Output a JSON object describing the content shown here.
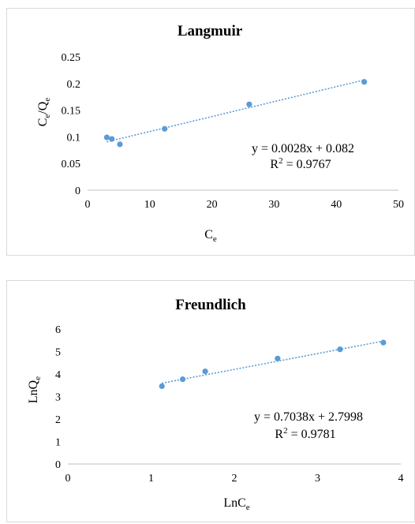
{
  "chart_data": [
    {
      "type": "scatter",
      "title": "Langmuir",
      "xlabel": {
        "main": "C",
        "sub": "e"
      },
      "ylabel": {
        "main": "C",
        "sub1": "e",
        "mid": "/Q",
        "sub2": "e"
      },
      "xlim": [
        0,
        50
      ],
      "ylim": [
        0,
        0.25
      ],
      "xticks": [
        "0",
        "10",
        "20",
        "30",
        "40",
        "50"
      ],
      "yticks": [
        "0",
        "0.05",
        "0.1",
        "0.15",
        "0.2",
        "0.25"
      ],
      "grid": false,
      "points": [
        {
          "x": 3.1,
          "y": 0.099
        },
        {
          "x": 3.9,
          "y": 0.096
        },
        {
          "x": 5.2,
          "y": 0.086
        },
        {
          "x": 12.4,
          "y": 0.115
        },
        {
          "x": 26.0,
          "y": 0.161
        },
        {
          "x": 44.5,
          "y": 0.203
        }
      ],
      "trendline": {
        "slope": 0.0028,
        "intercept": 0.082,
        "x_range": [
          3.1,
          44.5
        ]
      },
      "equation": "y = 0.0028x + 0.082",
      "r2": {
        "prefix": "R",
        "sup": "2",
        "value": " = 0.9767"
      },
      "marker_color": "#5b9bd5"
    },
    {
      "type": "scatter",
      "title": "Freundlich",
      "xlabel": {
        "main": "LnC",
        "sub": "e"
      },
      "ylabel": {
        "main": "LnQ",
        "sub": "e"
      },
      "xlim": [
        0,
        4
      ],
      "ylim": [
        0,
        6
      ],
      "xticks": [
        "0",
        "1",
        "2",
        "3",
        "4"
      ],
      "yticks": [
        "0",
        "1",
        "2",
        "3",
        "4",
        "5",
        "6"
      ],
      "grid": false,
      "points": [
        {
          "x": 1.13,
          "y": 3.46
        },
        {
          "x": 1.38,
          "y": 3.77
        },
        {
          "x": 1.65,
          "y": 4.12
        },
        {
          "x": 2.52,
          "y": 4.69
        },
        {
          "x": 3.27,
          "y": 5.1
        },
        {
          "x": 3.79,
          "y": 5.4
        }
      ],
      "trendline": {
        "slope": 0.7038,
        "intercept": 2.7998,
        "x_range": [
          1.13,
          3.79
        ]
      },
      "equation": "y = 0.7038x + 2.7998",
      "r2": {
        "prefix": "R",
        "sup": "2",
        "value": " = 0.9781"
      },
      "marker_color": "#5b9bd5"
    }
  ]
}
